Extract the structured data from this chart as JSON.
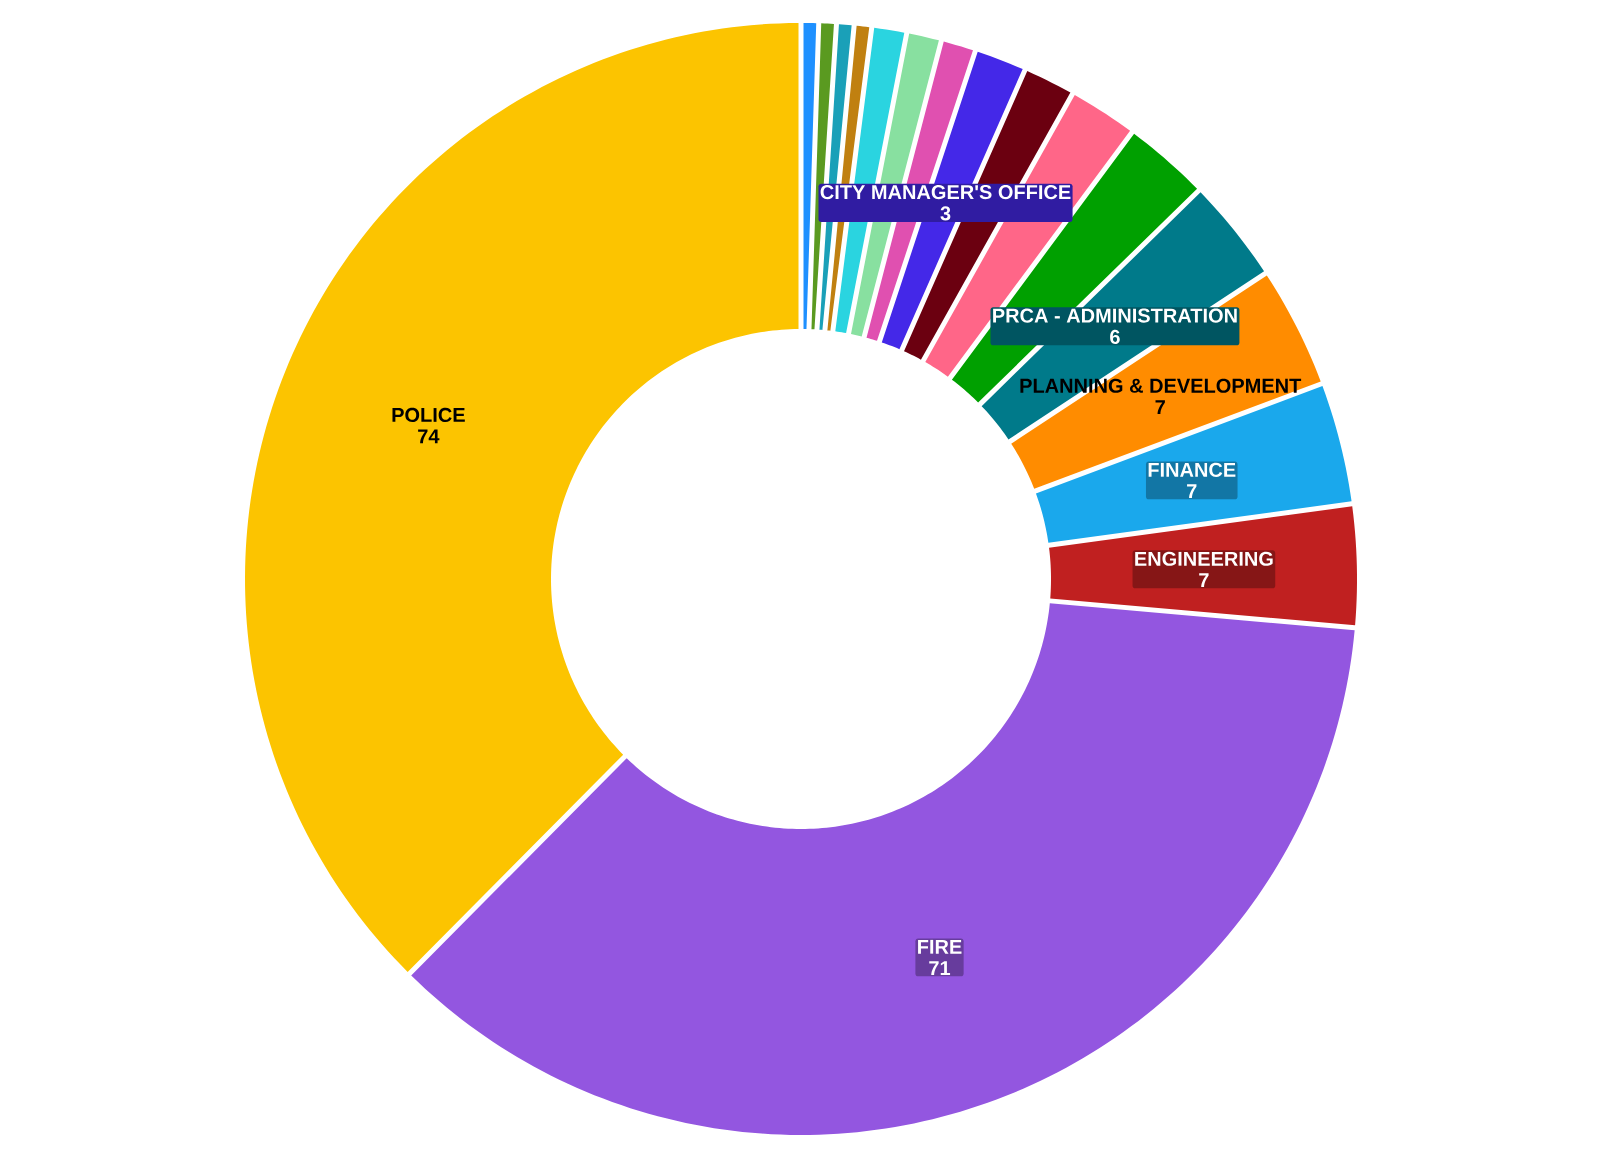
{
  "chart_data": {
    "type": "donut",
    "categories": [
      null,
      null,
      null,
      null,
      null,
      null,
      null,
      "CITY MANAGER'S OFFICE",
      null,
      null,
      null,
      "PRCA - ADMINISTRATION",
      "PLANNING & DEVELOPMENT",
      "FINANCE",
      "ENGINEERING",
      "FIRE",
      "POLICE"
    ],
    "values": [
      1,
      1,
      1,
      1,
      2,
      2,
      2,
      3,
      3,
      4,
      5,
      6,
      7,
      7,
      7,
      71,
      74
    ],
    "value_labels": [
      null,
      null,
      null,
      null,
      null,
      null,
      null,
      "3",
      null,
      null,
      null,
      "6",
      "7",
      "7",
      "7",
      "71",
      "74"
    ],
    "colors": [
      "#1e90ff",
      "#5a9a20",
      "#1aa0b8",
      "#c08010",
      "#2ad4e0",
      "#88e0a0",
      "#e050b0",
      "#4428e8",
      "#6b0010",
      "#ff6688",
      "#00a000",
      "#007a8a",
      "#ff8c00",
      "#1aa8ec",
      "#c02020",
      "#9356e0",
      "#fcc400"
    ]
  }
}
